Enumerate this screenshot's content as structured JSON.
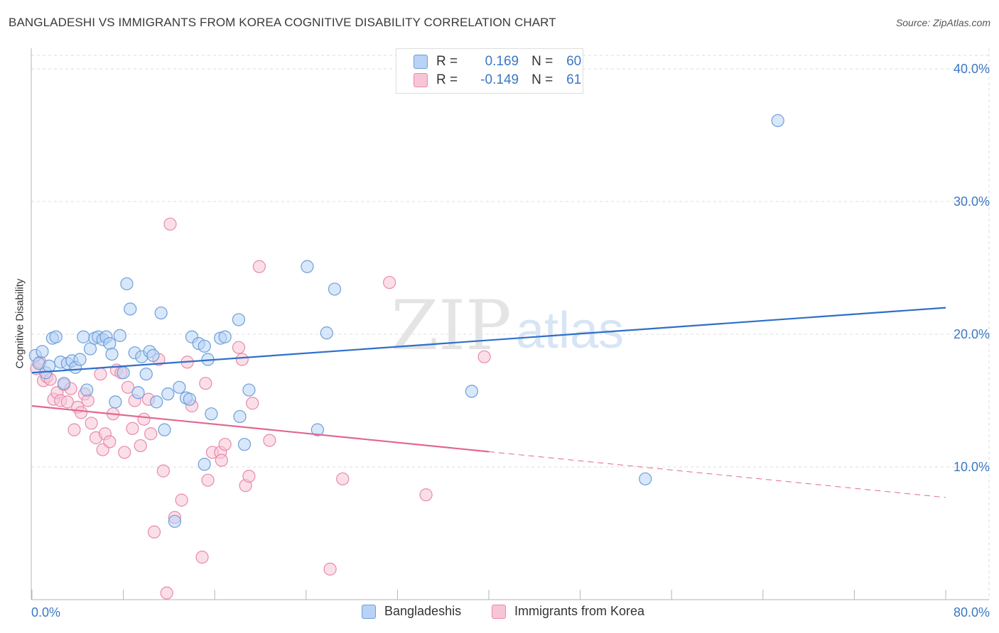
{
  "title": "BANGLADESHI VS IMMIGRANTS FROM KOREA COGNITIVE DISABILITY CORRELATION CHART",
  "source": "Source: ZipAtlas.com",
  "watermark": {
    "zip": "ZIP",
    "atlas": "atlas"
  },
  "legend": {
    "rows": [
      {
        "r_label": "R =",
        "r_value": "0.169",
        "n_label": "N =",
        "n_value": "60"
      },
      {
        "r_label": "R =",
        "r_value": "-0.149",
        "n_label": "N =",
        "n_value": "61"
      }
    ]
  },
  "colors": {
    "blue_fill": "#b8d3f5",
    "blue_stroke": "#6e9fd9",
    "blue_line": "#2e6fc9",
    "pink_fill": "#f7c5d6",
    "pink_stroke": "#e88aaa",
    "pink_line": "#e0688f",
    "tick_text": "#3b78c4",
    "grid": "#dcdcdc"
  },
  "chart_data": {
    "type": "scatter",
    "title": "BANGLADESHI VS IMMIGRANTS FROM KOREA COGNITIVE DISABILITY CORRELATION CHART",
    "xlabel": "",
    "ylabel": "Cognitive Disability",
    "xlim": [
      0,
      80
    ],
    "ylim": [
      0,
      42
    ],
    "x_tick_labels": [
      "0.0%",
      "80.0%"
    ],
    "y_ticks": [
      10,
      20,
      30,
      40
    ],
    "y_tick_labels": [
      "10.0%",
      "20.0%",
      "30.0%",
      "40.0%"
    ],
    "grid": true,
    "legend_position": "top-center",
    "series": [
      {
        "name": "Bangladeshis",
        "color": "#b8d3f5",
        "r": 0.169,
        "n": 60,
        "trend": {
          "x": [
            0,
            80
          ],
          "y": [
            17.1,
            22.0
          ],
          "dashed_from": null
        },
        "points": [
          [
            0.3,
            18.4
          ],
          [
            0.6,
            17.8
          ],
          [
            0.9,
            18.7
          ],
          [
            1.2,
            17.1
          ],
          [
            1.5,
            17.6
          ],
          [
            1.8,
            19.7
          ],
          [
            2.1,
            19.8
          ],
          [
            2.5,
            17.9
          ],
          [
            2.8,
            16.3
          ],
          [
            3.1,
            17.8
          ],
          [
            3.5,
            18.0
          ],
          [
            3.8,
            17.5
          ],
          [
            4.2,
            18.1
          ],
          [
            4.5,
            19.8
          ],
          [
            4.8,
            15.8
          ],
          [
            5.1,
            18.9
          ],
          [
            5.5,
            19.7
          ],
          [
            5.8,
            19.8
          ],
          [
            6.2,
            19.6
          ],
          [
            6.5,
            19.8
          ],
          [
            6.8,
            19.3
          ],
          [
            7.0,
            18.5
          ],
          [
            7.3,
            14.9
          ],
          [
            7.7,
            19.9
          ],
          [
            8.0,
            17.1
          ],
          [
            8.3,
            23.8
          ],
          [
            8.6,
            21.9
          ],
          [
            9.0,
            18.6
          ],
          [
            9.3,
            15.6
          ],
          [
            9.6,
            18.3
          ],
          [
            10.0,
            17.0
          ],
          [
            10.3,
            18.7
          ],
          [
            10.6,
            18.4
          ],
          [
            10.9,
            14.9
          ],
          [
            11.3,
            21.6
          ],
          [
            11.6,
            12.8
          ],
          [
            11.9,
            15.5
          ],
          [
            12.5,
            5.9
          ],
          [
            12.9,
            16.0
          ],
          [
            13.5,
            15.2
          ],
          [
            13.8,
            15.1
          ],
          [
            14.0,
            19.8
          ],
          [
            14.6,
            19.3
          ],
          [
            15.1,
            19.1
          ],
          [
            15.4,
            18.1
          ],
          [
            15.7,
            14.0
          ],
          [
            15.1,
            10.2
          ],
          [
            16.5,
            19.7
          ],
          [
            16.9,
            19.8
          ],
          [
            18.1,
            21.1
          ],
          [
            18.2,
            13.8
          ],
          [
            18.6,
            11.7
          ],
          [
            19.0,
            15.8
          ],
          [
            24.1,
            25.1
          ],
          [
            25.0,
            12.8
          ],
          [
            25.8,
            20.1
          ],
          [
            26.5,
            23.4
          ],
          [
            38.5,
            15.7
          ],
          [
            53.7,
            9.1
          ],
          [
            65.3,
            36.1
          ]
        ]
      },
      {
        "name": "Immigrants from Korea",
        "color": "#f7c5d6",
        "r": -0.149,
        "n": 61,
        "trend": {
          "x": [
            0,
            80
          ],
          "y": [
            14.6,
            7.7
          ],
          "dashed_from": 40
        },
        "points": [
          [
            0.4,
            17.4
          ],
          [
            0.7,
            17.9
          ],
          [
            1.0,
            16.5
          ],
          [
            1.3,
            16.8
          ],
          [
            1.6,
            16.6
          ],
          [
            1.9,
            15.1
          ],
          [
            2.2,
            15.6
          ],
          [
            2.5,
            15.0
          ],
          [
            2.8,
            16.2
          ],
          [
            3.1,
            14.9
          ],
          [
            3.4,
            15.9
          ],
          [
            3.7,
            12.8
          ],
          [
            4.0,
            14.5
          ],
          [
            4.3,
            14.1
          ],
          [
            4.6,
            15.5
          ],
          [
            4.9,
            15.0
          ],
          [
            5.2,
            13.3
          ],
          [
            5.6,
            12.2
          ],
          [
            6.0,
            17.0
          ],
          [
            6.2,
            11.3
          ],
          [
            6.4,
            12.5
          ],
          [
            6.8,
            11.9
          ],
          [
            7.1,
            14.0
          ],
          [
            7.4,
            17.3
          ],
          [
            7.8,
            17.1
          ],
          [
            8.1,
            11.1
          ],
          [
            8.4,
            16.0
          ],
          [
            8.8,
            12.9
          ],
          [
            9.0,
            15.0
          ],
          [
            9.5,
            11.6
          ],
          [
            9.8,
            13.6
          ],
          [
            10.2,
            15.1
          ],
          [
            10.4,
            12.5
          ],
          [
            10.7,
            5.1
          ],
          [
            11.1,
            18.1
          ],
          [
            11.5,
            9.7
          ],
          [
            11.8,
            0.5
          ],
          [
            12.1,
            28.3
          ],
          [
            12.5,
            6.2
          ],
          [
            13.1,
            7.5
          ],
          [
            13.6,
            17.9
          ],
          [
            14.0,
            14.6
          ],
          [
            14.9,
            3.2
          ],
          [
            15.2,
            16.3
          ],
          [
            15.4,
            9.0
          ],
          [
            15.8,
            11.1
          ],
          [
            16.5,
            11.1
          ],
          [
            16.6,
            10.5
          ],
          [
            16.9,
            11.7
          ],
          [
            18.1,
            19.0
          ],
          [
            18.4,
            18.1
          ],
          [
            18.7,
            8.6
          ],
          [
            19.0,
            9.3
          ],
          [
            19.3,
            14.8
          ],
          [
            19.9,
            25.1
          ],
          [
            20.8,
            12.0
          ],
          [
            26.1,
            2.3
          ],
          [
            27.2,
            9.1
          ],
          [
            31.3,
            23.9
          ],
          [
            34.5,
            7.9
          ],
          [
            39.6,
            18.3
          ]
        ]
      }
    ]
  }
}
